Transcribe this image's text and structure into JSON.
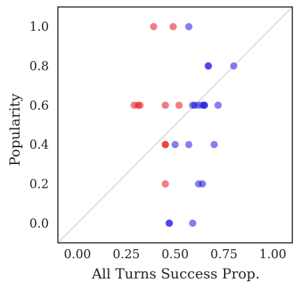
{
  "chart_data": {
    "type": "scatter",
    "title": "",
    "xlabel": "All Turns Success Prop.",
    "ylabel": "Popularity",
    "xlim": [
      -0.1,
      1.1
    ],
    "ylim": [
      -0.1,
      1.1
    ],
    "xticks": [
      0.0,
      0.25,
      0.5,
      0.75,
      1.0
    ],
    "xtick_labels": [
      "0.00",
      "0.25",
      "0.50",
      "0.75",
      "1.00"
    ],
    "yticks": [
      0.0,
      0.2,
      0.4,
      0.6,
      0.8,
      1.0
    ],
    "ytick_labels": [
      "0.0",
      "0.2",
      "0.4",
      "0.6",
      "0.8",
      "1.0"
    ],
    "grid": false,
    "legend": "none",
    "reference_line": {
      "from": [
        -0.1,
        -0.1
      ],
      "to": [
        1.1,
        1.1
      ],
      "color": "#e3e3e3"
    },
    "colors": {
      "red": "#e8141c",
      "blue": "#1f18e0"
    },
    "points": [
      {
        "x": 0.39,
        "y": 1.0,
        "color": "red"
      },
      {
        "x": 0.49,
        "y": 1.0,
        "color": "red"
      },
      {
        "x": 0.57,
        "y": 1.0,
        "color": "blue"
      },
      {
        "x": 0.67,
        "y": 0.8,
        "color": "blue"
      },
      {
        "x": 0.67,
        "y": 0.8,
        "color": "blue"
      },
      {
        "x": 0.8,
        "y": 0.8,
        "color": "blue"
      },
      {
        "x": 0.29,
        "y": 0.6,
        "color": "red"
      },
      {
        "x": 0.31,
        "y": 0.6,
        "color": "red"
      },
      {
        "x": 0.32,
        "y": 0.6,
        "color": "red"
      },
      {
        "x": 0.45,
        "y": 0.6,
        "color": "red"
      },
      {
        "x": 0.52,
        "y": 0.6,
        "color": "red"
      },
      {
        "x": 0.59,
        "y": 0.6,
        "color": "blue"
      },
      {
        "x": 0.6,
        "y": 0.6,
        "color": "blue"
      },
      {
        "x": 0.62,
        "y": 0.6,
        "color": "blue"
      },
      {
        "x": 0.64,
        "y": 0.6,
        "color": "blue"
      },
      {
        "x": 0.65,
        "y": 0.6,
        "color": "blue"
      },
      {
        "x": 0.65,
        "y": 0.6,
        "color": "blue"
      },
      {
        "x": 0.72,
        "y": 0.6,
        "color": "blue"
      },
      {
        "x": 0.45,
        "y": 0.4,
        "color": "red"
      },
      {
        "x": 0.45,
        "y": 0.4,
        "color": "red"
      },
      {
        "x": 0.5,
        "y": 0.4,
        "color": "blue"
      },
      {
        "x": 0.57,
        "y": 0.4,
        "color": "blue"
      },
      {
        "x": 0.7,
        "y": 0.4,
        "color": "blue"
      },
      {
        "x": 0.45,
        "y": 0.2,
        "color": "red"
      },
      {
        "x": 0.62,
        "y": 0.2,
        "color": "blue"
      },
      {
        "x": 0.64,
        "y": 0.2,
        "color": "blue"
      },
      {
        "x": 0.47,
        "y": 0.0,
        "color": "blue"
      },
      {
        "x": 0.47,
        "y": 0.0,
        "color": "blue"
      },
      {
        "x": 0.59,
        "y": 0.0,
        "color": "blue"
      }
    ]
  }
}
